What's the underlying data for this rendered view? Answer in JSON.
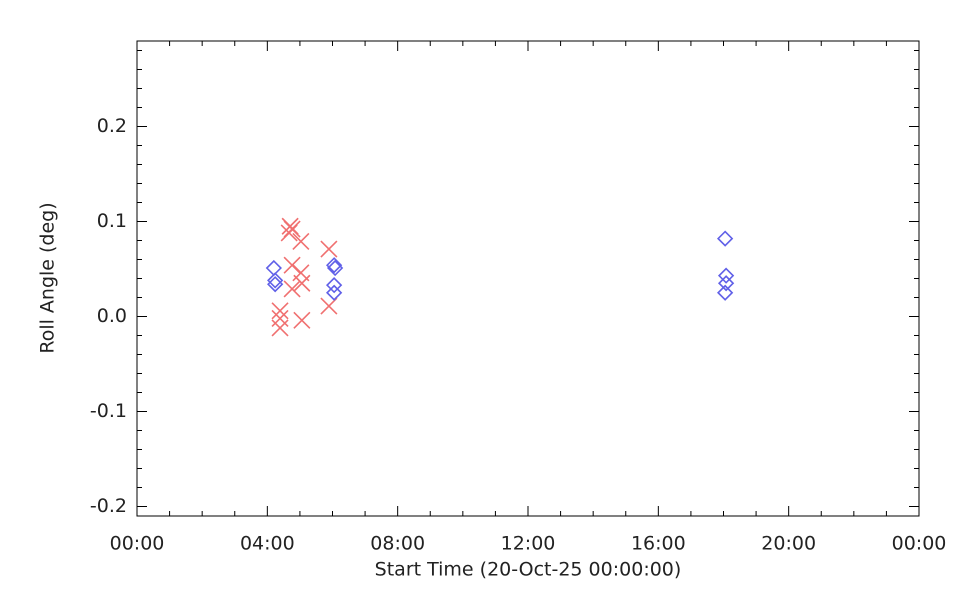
{
  "chart_data": {
    "type": "scatter",
    "xlabel": "Start Time (20-Oct-25 00:00:00)",
    "ylabel": "Roll Angle (deg)",
    "xlim": [
      0,
      24
    ],
    "ylim": [
      -0.21,
      0.29
    ],
    "xticks": [
      {
        "value": 0,
        "label": "00:00"
      },
      {
        "value": 4,
        "label": "04:00"
      },
      {
        "value": 8,
        "label": "08:00"
      },
      {
        "value": 12,
        "label": "12:00"
      },
      {
        "value": 16,
        "label": "16:00"
      },
      {
        "value": 20,
        "label": "20:00"
      },
      {
        "value": 24,
        "label": "00:00"
      }
    ],
    "yticks": [
      -0.2,
      -0.1,
      {
        "value": 0,
        "label": "0.0"
      },
      0.1,
      0.2
    ],
    "xminor": 4,
    "yminor": 5,
    "series": [
      {
        "color": "#f07070",
        "marker": "x",
        "x": [
          4.7,
          4.76,
          4.67,
          5.03,
          5.89,
          4.76,
          5.03,
          5.06,
          4.76,
          5.89,
          4.39,
          4.39,
          5.06,
          4.39
        ],
        "values": [
          0.095,
          0.092,
          0.088,
          0.079,
          0.071,
          0.054,
          0.046,
          0.035,
          0.029,
          0.011,
          0.006,
          -0.002,
          -0.004,
          -0.012
        ]
      },
      {
        "color": "#6060e8",
        "marker": "diamond",
        "x": [
          4.2,
          4.24,
          4.24,
          6.05,
          6.08,
          6.05,
          6.05,
          18.05,
          18.08,
          18.08,
          18.05
        ],
        "values": [
          0.051,
          0.038,
          0.034,
          0.054,
          0.051,
          0.033,
          0.025,
          0.082,
          0.043,
          0.035,
          0.025
        ]
      }
    ]
  }
}
